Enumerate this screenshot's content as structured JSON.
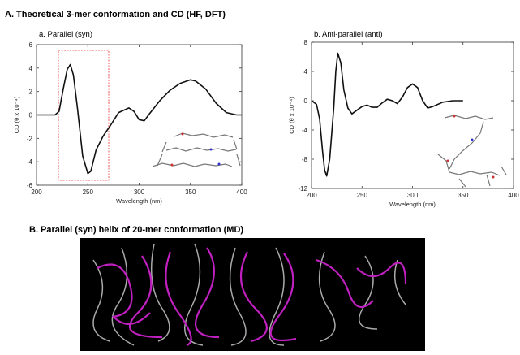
{
  "headings": [
    "A. Theoretical 3-mer conformation and CD (HF, DFT)",
    "B. Parallel (syn) helix of 20-mer conformation (MD)"
  ],
  "chart_data": [
    {
      "type": "line",
      "title": "a. Parallel (syn)",
      "xlabel": "Wavelength (nm)",
      "ylabel": "CD (θ x 10⁻⁴)",
      "xlim": [
        200,
        400
      ],
      "xticks": [
        200,
        250,
        300,
        350,
        400
      ],
      "ylim": [
        -6,
        6
      ],
      "yticks": [
        -6,
        -4,
        -2,
        0,
        2,
        4,
        6
      ],
      "series": [
        {
          "color": "#111111",
          "x": [
            200,
            210,
            218,
            222,
            226,
            230,
            233,
            236,
            240,
            245,
            250,
            253,
            258,
            265,
            272,
            280,
            290,
            295,
            300,
            305,
            310,
            320,
            330,
            340,
            350,
            355,
            365,
            375,
            385,
            395,
            400
          ],
          "values": [
            0,
            0,
            0,
            0.3,
            2.2,
            3.9,
            4.3,
            3.4,
            0.5,
            -3.5,
            -5.0,
            -4.8,
            -3.0,
            -1.8,
            -0.9,
            0.2,
            0.6,
            0.3,
            -0.4,
            -0.5,
            0.1,
            1.2,
            2.1,
            2.7,
            3.0,
            2.9,
            2.2,
            1.0,
            0.2,
            0,
            0
          ]
        }
      ]
    },
    {
      "type": "line",
      "title": "b. Anti-parallel (anti)",
      "xlabel": "Wavelength (nm)",
      "ylabel": "CD (θ x 10⁻⁴)",
      "xlim": [
        200,
        400
      ],
      "xticks": [
        200,
        250,
        300,
        350,
        400
      ],
      "ylim": [
        -12,
        8
      ],
      "yticks": [
        -12,
        -8,
        -4,
        0,
        4,
        8
      ],
      "series": [
        {
          "color": "#111111",
          "x": [
            200,
            205,
            208,
            211,
            213,
            215,
            218,
            222,
            224,
            226,
            229,
            232,
            236,
            240,
            245,
            250,
            255,
            260,
            265,
            270,
            275,
            280,
            285,
            290,
            295,
            300,
            305,
            310,
            315,
            320,
            330,
            340,
            350
          ],
          "values": [
            0,
            -0.5,
            -2.5,
            -7,
            -9.5,
            -10.3,
            -8,
            -1,
            4,
            6.5,
            5.2,
            1.5,
            -1,
            -1.8,
            -1.3,
            -0.8,
            -0.6,
            -0.9,
            -0.9,
            -0.3,
            0.2,
            0,
            -0.4,
            0.5,
            1.8,
            2.3,
            1.8,
            0,
            -1.0,
            -0.8,
            -0.2,
            0,
            0
          ]
        }
      ]
    }
  ]
}
